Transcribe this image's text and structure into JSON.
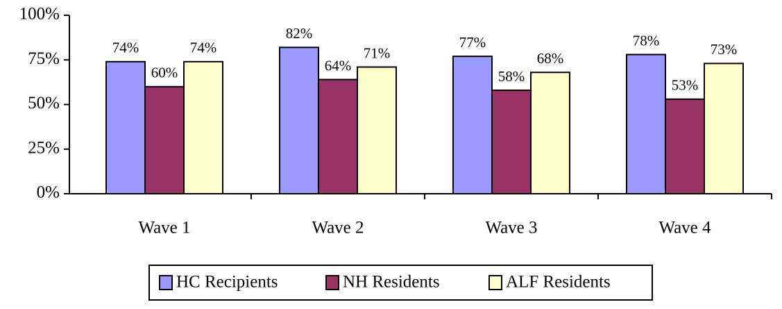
{
  "chart_data": {
    "type": "bar",
    "categories": [
      "Wave 1",
      "Wave 2",
      "Wave 3",
      "Wave 4"
    ],
    "series": [
      {
        "name": "HC Recipients",
        "color": "#9999ff",
        "values": [
          74,
          82,
          77,
          78
        ],
        "value_labels": [
          "74%",
          "82%",
          "77%",
          "78%"
        ]
      },
      {
        "name": "NH Residents",
        "color": "#993366",
        "values": [
          60,
          64,
          58,
          53
        ],
        "value_labels": [
          "60%",
          "64%",
          "58%",
          "53%"
        ]
      },
      {
        "name": "ALF Residents",
        "color": "#ffffcc",
        "values": [
          74,
          71,
          68,
          73
        ],
        "value_labels": [
          "74%",
          "71%",
          "68%",
          "73%"
        ]
      }
    ],
    "ylim": [
      0,
      100
    ],
    "yticks": [
      {
        "value": 0,
        "label": "0%"
      },
      {
        "value": 25,
        "label": "25%"
      },
      {
        "value": 50,
        "label": "50%"
      },
      {
        "value": 75,
        "label": "75%"
      },
      {
        "value": 100,
        "label": "100%"
      }
    ],
    "legend": "bottom"
  }
}
